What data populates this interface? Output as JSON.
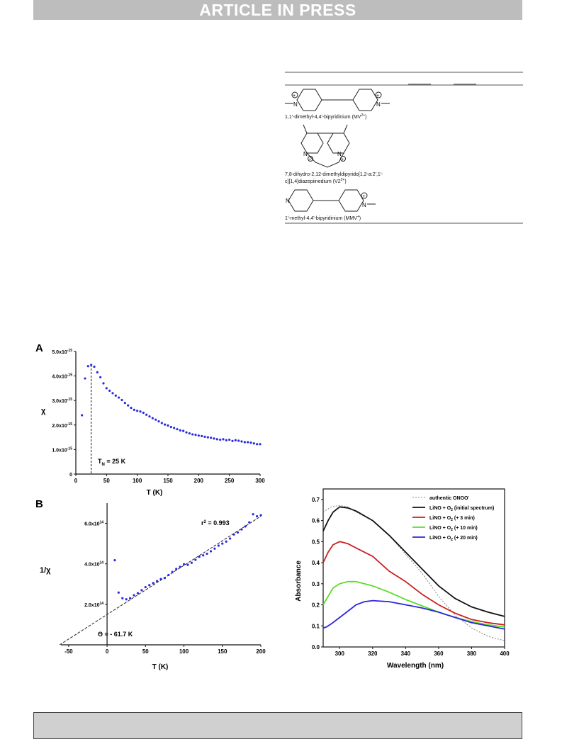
{
  "banner": {
    "text": "ARTICLE IN PRESS",
    "color": "#bdbdbd"
  },
  "molecule_table": {
    "compounds": [
      {
        "name": "1,1'-dimethyl-4,4'-bipyridinium (MV",
        "sup": "2+",
        "tail": ")"
      },
      {
        "name_line1": "7,8-dihydro-2,12-dimethyldipyrido[1,2-a:2',1'-",
        "name_line2": "c][1,4]diazepiinedium  (V2",
        "sup": "2+",
        "tail": ")"
      },
      {
        "name": "1'-methyl-4,4'-bipyridinium  (MMV",
        "sup": "+",
        "tail": ")"
      }
    ],
    "atoms": {
      "nitrogen": "N",
      "charge": "+"
    }
  },
  "panel_A": {
    "label": "A",
    "ylabel": "χ",
    "xlabel": "T (K)",
    "yticks": [
      {
        "v": 0,
        "m": "0",
        "e": ""
      },
      {
        "v": 1,
        "m": "1.0x10",
        "e": "-15"
      },
      {
        "v": 2,
        "m": "2.0x10",
        "e": "-15"
      },
      {
        "v": 3,
        "m": "3.0x10",
        "e": "-15"
      },
      {
        "v": 4,
        "m": "4.0x10",
        "e": "-15"
      },
      {
        "v": 5,
        "m": "5.0x10",
        "e": "-15"
      }
    ],
    "xticks": [
      "0",
      "50",
      "100",
      "150",
      "200",
      "250",
      "300"
    ],
    "annotation": {
      "main": "T",
      "sub": "N",
      "rest": " = 25 K"
    }
  },
  "panel_B": {
    "label": "B",
    "ylabel": "1/χ",
    "xlabel": "T (K)",
    "yticks": [
      {
        "v": 2,
        "m": "2.0x10",
        "e": "14"
      },
      {
        "v": 4,
        "m": "4.0x10",
        "e": "14"
      },
      {
        "v": 6,
        "m": "6.0x10",
        "e": "14"
      }
    ],
    "xticks": [
      "-50",
      "0",
      "50",
      "100",
      "150",
      "200"
    ],
    "r2": {
      "pre": "r",
      "sup": "2",
      "post": " = 0.993"
    },
    "theta": "Θ = - 61.7 K"
  },
  "panel_C": {
    "ylabel": "Absorbance",
    "xlabel": "Wavelength (nm)",
    "yticks": [
      "0.0",
      "0.1",
      "0.2",
      "0.3",
      "0.4",
      "0.5",
      "0.6",
      "0.7"
    ],
    "xticks": [
      "300",
      "320",
      "340",
      "360",
      "380",
      "400"
    ],
    "legend": [
      {
        "pre": "authentic ONOO",
        "sub": "",
        "post": "",
        "sup": "-"
      },
      {
        "pre": "LiNO + O",
        "sub": "2",
        "post": " (initial spectrum)",
        "sup": ""
      },
      {
        "pre": "LiNO + O",
        "sub": "2",
        "post": " (+ 3 min)",
        "sup": ""
      },
      {
        "pre": "LiNO + O",
        "sub": "2",
        "post": " (+ 10 min)",
        "sup": ""
      },
      {
        "pre": "LiNO + O",
        "sub": "2",
        "post": " (+ 20 min)",
        "sup": ""
      }
    ]
  },
  "chart_data": [
    {
      "type": "scatter",
      "title": "A",
      "xlabel": "T (K)",
      "ylabel": "χ",
      "ylabel_unit": "x10^-15",
      "xlim": [
        0,
        300
      ],
      "ylim": [
        0,
        5.0
      ],
      "vline_x": 25,
      "color": "#2a2ae0",
      "x": [
        10,
        15,
        20,
        25,
        30,
        35,
        40,
        45,
        50,
        55,
        60,
        65,
        70,
        75,
        80,
        85,
        90,
        95,
        100,
        105,
        110,
        115,
        120,
        125,
        130,
        135,
        140,
        145,
        150,
        155,
        160,
        165,
        170,
        175,
        180,
        185,
        190,
        195,
        200,
        205,
        210,
        215,
        220,
        225,
        230,
        235,
        240,
        245,
        250,
        255,
        260,
        265,
        270,
        275,
        280,
        285,
        290,
        295,
        300
      ],
      "y": [
        2.4,
        3.9,
        4.4,
        4.45,
        4.38,
        4.15,
        3.95,
        3.7,
        3.5,
        3.4,
        3.3,
        3.2,
        3.12,
        3.02,
        2.9,
        2.8,
        2.7,
        2.62,
        2.58,
        2.55,
        2.5,
        2.42,
        2.35,
        2.28,
        2.22,
        2.15,
        2.08,
        2.02,
        1.98,
        1.92,
        1.88,
        1.83,
        1.78,
        1.76,
        1.7,
        1.66,
        1.62,
        1.6,
        1.57,
        1.55,
        1.52,
        1.5,
        1.48,
        1.45,
        1.42,
        1.4,
        1.42,
        1.38,
        1.4,
        1.35,
        1.38,
        1.36,
        1.33,
        1.3,
        1.3,
        1.28,
        1.25,
        1.22,
        1.22
      ]
    },
    {
      "type": "scatter",
      "title": "B",
      "xlabel": "T (K)",
      "ylabel": "1/χ",
      "ylabel_unit": "x10^14",
      "xlim": [
        -60,
        200
      ],
      "ylim": [
        0,
        7.0
      ],
      "color": "#2a2ae0",
      "fit": {
        "x0": -61.7,
        "x1": 200,
        "y0": 0,
        "y1": 6.35
      },
      "x": [
        10,
        15,
        20,
        25,
        30,
        35,
        40,
        45,
        50,
        55,
        60,
        65,
        70,
        75,
        80,
        85,
        90,
        95,
        100,
        105,
        110,
        115,
        120,
        125,
        130,
        135,
        140,
        145,
        150,
        155,
        160,
        165,
        170,
        175,
        180,
        185,
        190,
        195,
        200
      ],
      "y": [
        4.18,
        2.58,
        2.3,
        2.25,
        2.3,
        2.45,
        2.55,
        2.7,
        2.85,
        2.95,
        3.05,
        3.15,
        3.25,
        3.3,
        3.45,
        3.6,
        3.75,
        3.85,
        3.98,
        3.95,
        4.05,
        4.2,
        4.35,
        4.42,
        4.5,
        4.62,
        4.75,
        4.9,
        5.0,
        5.1,
        5.25,
        5.45,
        5.55,
        5.7,
        5.85,
        6.05,
        6.45,
        6.35,
        6.4
      ]
    },
    {
      "type": "line",
      "xlabel": "Wavelength (nm)",
      "ylabel": "Absorbance",
      "xlim": [
        290,
        400
      ],
      "ylim": [
        0,
        0.75
      ],
      "legend_position": "top-right",
      "series": [
        {
          "name": "authentic ONOO-",
          "color": "#888888",
          "dashed": true,
          "x": [
            290,
            295,
            300,
            305,
            310,
            320,
            330,
            340,
            350,
            360,
            370,
            380,
            390,
            400
          ],
          "y": [
            0.64,
            0.665,
            0.672,
            0.665,
            0.64,
            0.6,
            0.53,
            0.44,
            0.35,
            0.24,
            0.15,
            0.09,
            0.05,
            0.03
          ]
        },
        {
          "name": "LiNO + O2 (initial spectrum)",
          "color": "#111111",
          "x": [
            290,
            293,
            296,
            300,
            305,
            310,
            320,
            330,
            340,
            350,
            360,
            370,
            380,
            390,
            400
          ],
          "y": [
            0.55,
            0.6,
            0.64,
            0.665,
            0.66,
            0.645,
            0.6,
            0.53,
            0.45,
            0.37,
            0.29,
            0.23,
            0.19,
            0.165,
            0.145
          ]
        },
        {
          "name": "LiNO + O2 (+ 3 min)",
          "color": "#cc1f1f",
          "x": [
            290,
            293,
            296,
            300,
            305,
            310,
            320,
            330,
            340,
            350,
            360,
            370,
            380,
            390,
            400
          ],
          "y": [
            0.4,
            0.45,
            0.485,
            0.5,
            0.49,
            0.47,
            0.43,
            0.36,
            0.31,
            0.25,
            0.2,
            0.16,
            0.13,
            0.115,
            0.105
          ]
        },
        {
          "name": "LiNO + O2 (+ 10 min)",
          "color": "#5bdc2a",
          "x": [
            290,
            293,
            296,
            300,
            305,
            310,
            320,
            330,
            340,
            350,
            360,
            370,
            380,
            390,
            400
          ],
          "y": [
            0.2,
            0.24,
            0.28,
            0.3,
            0.31,
            0.31,
            0.29,
            0.26,
            0.225,
            0.195,
            0.165,
            0.14,
            0.12,
            0.105,
            0.095
          ]
        },
        {
          "name": "LiNO + O2 (+ 20 min)",
          "color": "#2b26e0",
          "x": [
            290,
            292,
            295,
            300,
            305,
            310,
            315,
            320,
            330,
            340,
            350,
            360,
            370,
            380,
            390,
            400
          ],
          "y": [
            0.09,
            0.095,
            0.11,
            0.14,
            0.17,
            0.2,
            0.215,
            0.22,
            0.215,
            0.2,
            0.185,
            0.165,
            0.14,
            0.115,
            0.1,
            0.085
          ]
        }
      ]
    }
  ]
}
